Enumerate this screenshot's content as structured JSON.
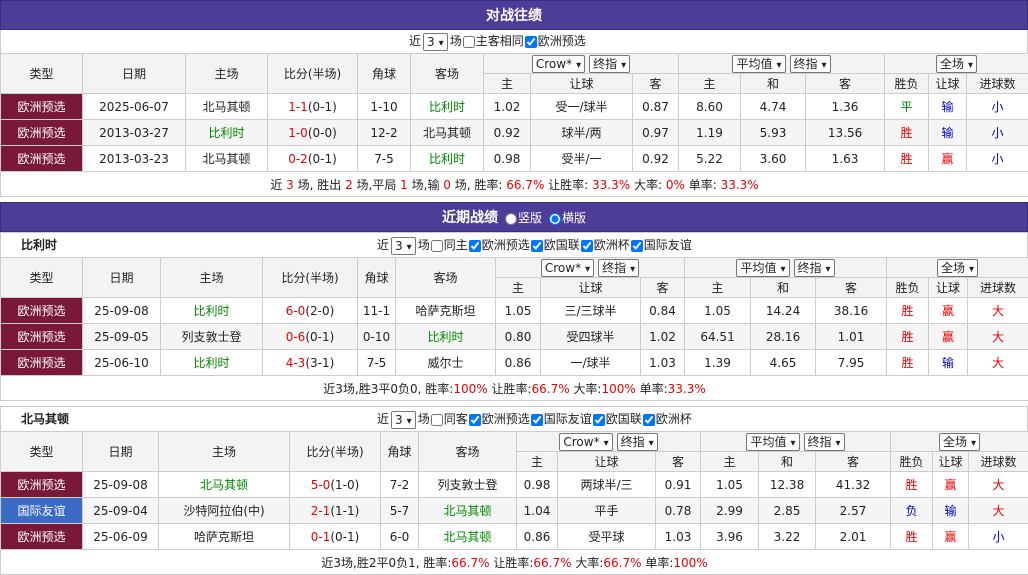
{
  "h2h": {
    "title": "对战往绩",
    "controls": {
      "prefix": "近",
      "count": "3",
      "suffix": "场",
      "options": [
        {
          "label": "主客相同",
          "checked": false
        },
        {
          "label": "欧洲预选",
          "checked": true
        }
      ]
    },
    "table": {
      "columns": [
        "类型",
        "日期",
        "主场",
        "比分(半场)",
        "角球",
        "客场"
      ],
      "asian_selects": [
        "Crow*",
        "终指"
      ],
      "euro_selects": [
        "平均值",
        "终指"
      ],
      "result_select": "全场",
      "sub": [
        "主",
        "让球",
        "客",
        "主",
        "和",
        "客",
        "胜负",
        "让球",
        "进球数"
      ],
      "rows": [
        {
          "cells": [
            "欧洲预选",
            "2025-06-07",
            "北马其顿",
            "1-1",
            "(0-1)",
            "1-10",
            "比利时",
            "1.02",
            "受一/球半",
            "0.87",
            "8.60",
            "4.74",
            "1.36",
            "平",
            "输",
            "小"
          ],
          "type_color": "#7a1838",
          "highlight": "away",
          "result_colors": [
            "#080",
            "#00c",
            "#00c"
          ]
        },
        {
          "cells": [
            "欧洲预选",
            "2013-03-27",
            "比利时",
            "1-0",
            "(0-0)",
            "12-2",
            "北马其顿",
            "0.92",
            "球半/两",
            "0.97",
            "1.19",
            "5.93",
            "13.56",
            "胜",
            "输",
            "小"
          ],
          "type_color": "#7a1838",
          "highlight": "home",
          "result_colors": [
            "#e00",
            "#00c",
            "#00c"
          ]
        },
        {
          "cells": [
            "欧洲预选",
            "2013-03-23",
            "北马其顿",
            "0-2",
            "(0-1)",
            "7-5",
            "比利时",
            "0.98",
            "受半/一",
            "0.92",
            "5.22",
            "3.60",
            "1.63",
            "胜",
            "赢",
            "小"
          ],
          "type_color": "#7a1838",
          "highlight": "away",
          "result_colors": [
            "#e00",
            "#e00",
            "#00c"
          ]
        }
      ],
      "summary": [
        "近 ",
        "3",
        " 场, 胜出 ",
        "2",
        " 场,平局 ",
        "1",
        " 场,输 ",
        "0",
        " 场, 胜率: ",
        "66.7%",
        " 让胜率: ",
        "33.3%",
        " 大率: ",
        "0%",
        " 单率: ",
        "33.3%"
      ]
    }
  },
  "recent": {
    "title": "近期战绩",
    "views": [
      {
        "label": "竖版",
        "checked": false
      },
      {
        "label": "横版",
        "checked": true
      }
    ],
    "teams": [
      {
        "name": "比利时",
        "controls": {
          "prefix": "近",
          "count": "3",
          "suffix": "场",
          "options": [
            {
              "label": "同主",
              "checked": false
            },
            {
              "label": "欧洲预选",
              "checked": true
            },
            {
              "label": "欧国联",
              "checked": true
            },
            {
              "label": "欧洲杯",
              "checked": true
            },
            {
              "label": "国际友谊",
              "checked": true
            }
          ]
        },
        "table": {
          "columns": [
            "类型",
            "日期",
            "主场",
            "比分(半场)",
            "角球",
            "客场"
          ],
          "asian_selects": [
            "Crow*",
            "终指"
          ],
          "euro_selects": [
            "平均值",
            "终指"
          ],
          "result_select": "全场",
          "sub": [
            "主",
            "让球",
            "客",
            "主",
            "和",
            "客",
            "胜负",
            "让球",
            "进球数"
          ],
          "rows": [
            {
              "cells": [
                "欧洲预选",
                "25-09-08",
                "比利时",
                "6-0",
                "(2-0)",
                "11-1",
                "哈萨克斯坦",
                "1.05",
                "三/三球半",
                "0.84",
                "1.05",
                "14.24",
                "38.16",
                "胜",
                "赢",
                "大"
              ],
              "type_color": "#7a1838",
              "highlight": "home",
              "result_colors": [
                "#e00",
                "#e00",
                "#e00"
              ]
            },
            {
              "cells": [
                "欧洲预选",
                "25-09-05",
                "列支敦士登",
                "0-6",
                "(0-1)",
                "0-10",
                "比利时",
                "0.80",
                "受四球半",
                "1.02",
                "64.51",
                "28.16",
                "1.01",
                "胜",
                "赢",
                "大"
              ],
              "type_color": "#7a1838",
              "highlight": "away",
              "result_colors": [
                "#e00",
                "#e00",
                "#e00"
              ]
            },
            {
              "cells": [
                "欧洲预选",
                "25-06-10",
                "比利时",
                "4-3",
                "(3-1)",
                "7-5",
                "威尔士",
                "0.86",
                "一/球半",
                "1.03",
                "1.39",
                "4.65",
                "7.95",
                "胜",
                "输",
                "大"
              ],
              "type_color": "#7a1838",
              "highlight": "home",
              "result_colors": [
                "#e00",
                "#00c",
                "#e00"
              ]
            }
          ],
          "summary": [
            "近3场,胜3平0负0, 胜率:",
            "100%",
            " 让胜率:",
            "66.7%",
            " 大率:",
            "100%",
            " 单率:",
            "33.3%"
          ]
        }
      },
      {
        "name": "北马其顿",
        "controls": {
          "prefix": "近",
          "count": "3",
          "suffix": "场",
          "options": [
            {
              "label": "同客",
              "checked": false
            },
            {
              "label": "欧洲预选",
              "checked": true
            },
            {
              "label": "国际友谊",
              "checked": true
            },
            {
              "label": "欧国联",
              "checked": true
            },
            {
              "label": "欧洲杯",
              "checked": true
            }
          ]
        },
        "table": {
          "columns": [
            "类型",
            "日期",
            "主场",
            "比分(半场)",
            "角球",
            "客场"
          ],
          "asian_selects": [
            "Crow*",
            "终指"
          ],
          "euro_selects": [
            "平均值",
            "终指"
          ],
          "result_select": "全场",
          "sub": [
            "主",
            "让球",
            "客",
            "主",
            "和",
            "客",
            "胜负",
            "让球",
            "进球数"
          ],
          "rows": [
            {
              "cells": [
                "欧洲预选",
                "25-09-08",
                "北马其顿",
                "5-0",
                "(1-0)",
                "7-2",
                "列支敦士登",
                "0.98",
                "两球半/三",
                "0.91",
                "1.05",
                "12.38",
                "41.32",
                "胜",
                "赢",
                "大"
              ],
              "type_color": "#7a1838",
              "highlight": "home",
              "result_colors": [
                "#e00",
                "#e00",
                "#e00"
              ]
            },
            {
              "cells": [
                "国际友谊",
                "25-09-04",
                "沙特阿拉伯(中)",
                "2-1",
                "(1-1)",
                "5-7",
                "北马其顿",
                "1.04",
                "平手",
                "0.78",
                "2.99",
                "2.85",
                "2.57",
                "负",
                "输",
                "大"
              ],
              "type_color": "#3a6cc6",
              "highlight": "away",
              "result_colors": [
                "#00c",
                "#00c",
                "#e00"
              ]
            },
            {
              "cells": [
                "欧洲预选",
                "25-06-09",
                "哈萨克斯坦",
                "0-1",
                "(0-1)",
                "6-0",
                "北马其顿",
                "0.86",
                "受平球",
                "1.03",
                "3.96",
                "3.22",
                "2.01",
                "胜",
                "赢",
                "小"
              ],
              "type_color": "#7a1838",
              "highlight": "away",
              "result_colors": [
                "#e00",
                "#e00",
                "#00c"
              ]
            }
          ],
          "summary": [
            "近3场,胜2平0负1, 胜率:",
            "66.7%",
            " 让胜率:",
            "66.7%",
            " 大率:",
            "66.7%",
            " 单率:",
            "100%"
          ]
        }
      }
    ]
  }
}
